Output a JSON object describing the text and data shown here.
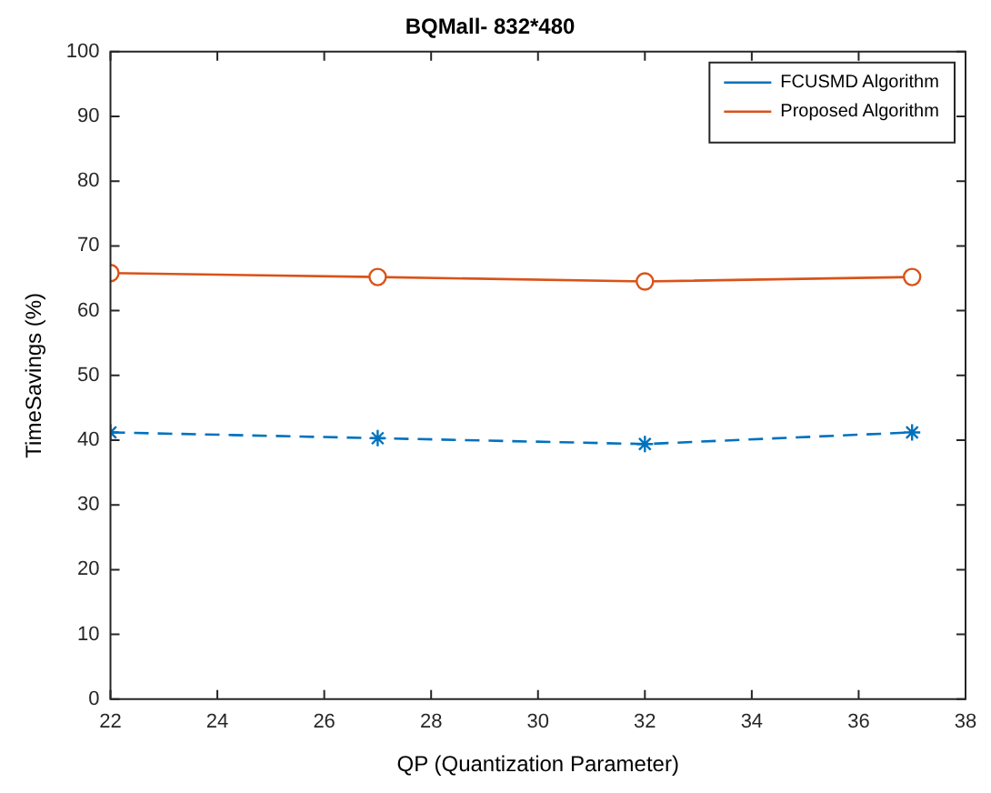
{
  "chart_data": {
    "type": "line",
    "title": "BQMall- 832*480",
    "xlabel": "QP (Quantization Parameter)",
    "ylabel": "TimeSavings (%)",
    "x": [
      22,
      27,
      32,
      37
    ],
    "series": [
      {
        "name": "FCUSMD Algorithm",
        "color": "#0072bd",
        "values": [
          41.2,
          40.3,
          39.4,
          41.2
        ],
        "marker": "cross",
        "line_style": "dashed"
      },
      {
        "name": "Proposed Algorithm",
        "color": "#d95319",
        "values": [
          65.8,
          65.2,
          64.5,
          65.2
        ],
        "marker": "circle",
        "line_style": "solid"
      }
    ],
    "xlim": [
      22,
      38
    ],
    "xticks": [
      22,
      24,
      26,
      28,
      30,
      32,
      34,
      36,
      38
    ],
    "ylim": [
      0,
      100
    ],
    "yticks": [
      0,
      10,
      20,
      30,
      40,
      50,
      60,
      70,
      80,
      90,
      100
    ],
    "grid": false,
    "legend": "top right"
  }
}
